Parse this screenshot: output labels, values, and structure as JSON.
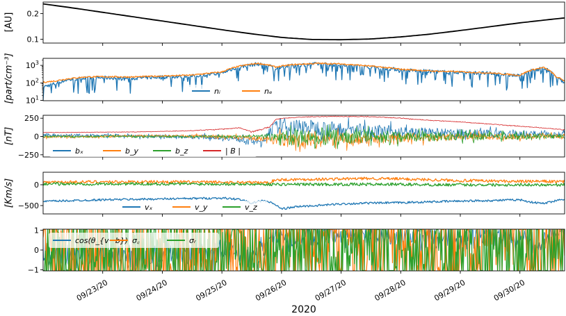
{
  "chart_data": [
    {
      "type": "line",
      "ylabel": "[AU]",
      "yscale": "linear",
      "ylim": [
        0.085,
        0.245
      ],
      "yticks": [
        0.1,
        0.2
      ],
      "ytick_labels": [
        "0.1",
        "0.2"
      ],
      "series": [
        {
          "color": "#000000",
          "x": [
            0,
            0.5,
            1,
            1.5,
            2,
            2.5,
            3,
            3.5,
            4,
            4.5,
            5,
            5.5,
            6,
            6.5,
            7,
            7.5,
            8,
            8.5,
            8.75
          ],
          "values": [
            0.238,
            0.222,
            0.205,
            0.188,
            0.171,
            0.154,
            0.137,
            0.121,
            0.107,
            0.099,
            0.098,
            0.101,
            0.109,
            0.12,
            0.134,
            0.149,
            0.164,
            0.177,
            0.183
          ]
        }
      ]
    },
    {
      "type": "line",
      "ylabel": "[part/cm⁻³]",
      "yscale": "log",
      "ylim": [
        10,
        2500
      ],
      "yticks": [
        10,
        100,
        1000
      ],
      "ytick_labels": [
        "10¹",
        "10²",
        "10³"
      ],
      "legend": "bottom-center",
      "series": [
        {
          "name": "nᵢ",
          "color": "#1f77b4",
          "x": [
            0,
            0.2,
            0.4,
            0.7,
            1.0,
            1.5,
            2.0,
            2.5,
            3.0,
            3.3,
            3.6,
            3.8,
            3.9,
            4.2,
            4.6,
            5.0,
            5.5,
            6.0,
            6.5,
            7.0,
            7.5,
            8.0,
            8.2,
            8.4,
            8.6,
            8.75
          ],
          "values": [
            60,
            90,
            150,
            190,
            200,
            180,
            220,
            240,
            350,
            800,
            1200,
            900,
            700,
            1000,
            1200,
            1100,
            800,
            550,
            450,
            400,
            350,
            250,
            500,
            700,
            200,
            100
          ]
        },
        {
          "name": "nₑ",
          "color": "#ff7f0e",
          "x": [
            0,
            0.2,
            0.4,
            0.7,
            1.0,
            1.5,
            2.0,
            2.5,
            3.0,
            3.3,
            3.6,
            3.8,
            3.9,
            4.2,
            4.6,
            5.0,
            5.5,
            6.0,
            6.5,
            7.0,
            7.5,
            8.0,
            8.2,
            8.4,
            8.6,
            8.75
          ],
          "values": [
            110,
            130,
            170,
            220,
            230,
            220,
            250,
            280,
            420,
            900,
            1300,
            1000,
            800,
            1100,
            1300,
            1200,
            900,
            600,
            480,
            430,
            370,
            270,
            550,
            750,
            230,
            130
          ]
        }
      ]
    },
    {
      "type": "line",
      "ylabel": "[nT]",
      "yscale": "linear",
      "ylim": [
        -280,
        290
      ],
      "yticks": [
        -250,
        0,
        250
      ],
      "ytick_labels": [
        "−250",
        "0",
        "250"
      ],
      "legend": "bottom-left",
      "series": [
        {
          "name": "bₓ",
          "color": "#1f77b4",
          "x": [
            0,
            1,
            2,
            3,
            3.5,
            3.7,
            3.8,
            4.0,
            4.5,
            5.0,
            5.5,
            6.0,
            6.5,
            7.0,
            7.5,
            8.0,
            8.5,
            8.75
          ],
          "values": [
            20,
            10,
            0,
            -10,
            -60,
            -80,
            100,
            150,
            120,
            100,
            80,
            60,
            50,
            40,
            40,
            30,
            40,
            30
          ],
          "spread": [
            40,
            40,
            40,
            60,
            80,
            80,
            120,
            200,
            200,
            180,
            160,
            140,
            120,
            110,
            100,
            90,
            80,
            70
          ]
        },
        {
          "name": "b_y",
          "color": "#ff7f0e",
          "x": [
            0,
            1,
            2,
            3,
            3.5,
            3.7,
            3.8,
            4.0,
            4.5,
            5.0,
            5.5,
            6.0,
            6.5,
            7.0,
            7.5,
            8.0,
            8.5,
            8.75
          ],
          "values": [
            -10,
            0,
            10,
            0,
            -20,
            -30,
            -30,
            -50,
            -50,
            -40,
            -30,
            -20,
            -20,
            -10,
            0,
            0,
            10,
            0
          ],
          "spread": [
            30,
            30,
            30,
            40,
            60,
            60,
            100,
            180,
            180,
            160,
            140,
            120,
            100,
            90,
            80,
            70,
            60,
            50
          ]
        },
        {
          "name": "b_z",
          "color": "#2ca02c",
          "x": [
            0,
            1,
            2,
            3,
            3.5,
            3.7,
            3.8,
            4.0,
            4.5,
            5.0,
            5.5,
            6.0,
            6.5,
            7.0,
            7.5,
            8.0,
            8.5,
            8.75
          ],
          "values": [
            0,
            0,
            0,
            0,
            0,
            0,
            0,
            -20,
            -10,
            -10,
            0,
            0,
            0,
            0,
            0,
            0,
            0,
            0
          ],
          "spread": [
            25,
            25,
            25,
            30,
            40,
            40,
            100,
            200,
            200,
            180,
            160,
            140,
            120,
            100,
            90,
            80,
            60,
            50
          ]
        },
        {
          "name": "| B |",
          "color": "#d62728",
          "x": [
            0,
            0.5,
            1,
            1.5,
            2,
            2.5,
            3,
            3.3,
            3.5,
            3.7,
            3.8,
            3.9,
            4.0,
            4.5,
            5.0,
            5.5,
            6.0,
            6.5,
            7.0,
            7.5,
            8.0,
            8.5,
            8.75
          ],
          "values": [
            55,
            55,
            60,
            62,
            70,
            80,
            100,
            120,
            60,
            110,
            130,
            230,
            250,
            270,
            275,
            270,
            250,
            220,
            200,
            170,
            140,
            110,
            90
          ],
          "spread": [
            5,
            5,
            5,
            5,
            5,
            8,
            10,
            10,
            15,
            15,
            15,
            10,
            10,
            8,
            8,
            8,
            8,
            8,
            8,
            8,
            8,
            8,
            8
          ]
        }
      ]
    },
    {
      "type": "line",
      "ylabel": "[Km/s]",
      "yscale": "linear",
      "ylim": [
        -700,
        300
      ],
      "yticks": [
        -500,
        0
      ],
      "ytick_labels": [
        "−500",
        "0"
      ],
      "legend": "bottom-center",
      "series": [
        {
          "name": "vₓ",
          "color": "#1f77b4",
          "x": [
            0,
            0.5,
            1,
            1.5,
            2,
            2.5,
            3,
            3.3,
            3.5,
            3.7,
            3.8,
            3.9,
            4.0,
            4.3,
            4.6,
            5.0,
            5.5,
            6.0,
            6.5,
            7.0,
            7.5,
            8.0,
            8.2,
            8.4,
            8.6,
            8.75
          ],
          "values": [
            -400,
            -380,
            -360,
            -350,
            -340,
            -330,
            -320,
            -350,
            -440,
            -380,
            -420,
            -480,
            -580,
            -520,
            -500,
            -460,
            -440,
            -430,
            -410,
            -390,
            -380,
            -360,
            -420,
            -450,
            -380,
            -340
          ]
        },
        {
          "name": "v_y",
          "color": "#ff7f0e",
          "x": [
            0,
            1,
            2,
            3,
            3.8,
            3.9,
            4.5,
            5.0,
            5.5,
            6.0,
            6.5,
            7.0,
            7.5,
            8.0,
            8.5,
            8.75
          ],
          "values": [
            60,
            70,
            70,
            60,
            50,
            120,
            130,
            140,
            150,
            140,
            120,
            100,
            90,
            80,
            80,
            70
          ]
        },
        {
          "name": "v_z",
          "color": "#2ca02c",
          "x": [
            0,
            1,
            2,
            3,
            3.8,
            3.9,
            4.5,
            5.0,
            5.5,
            6.0,
            6.5,
            7.0,
            7.5,
            8.0,
            8.5,
            8.75
          ],
          "values": [
            20,
            20,
            20,
            20,
            10,
            10,
            10,
            10,
            10,
            10,
            0,
            0,
            0,
            0,
            0,
            0
          ]
        }
      ]
    },
    {
      "type": "line",
      "yscale": "linear",
      "ylim": [
        -1.05,
        1.05
      ],
      "yticks": [
        -1,
        0,
        1
      ],
      "ytick_labels": [
        "−1",
        "0",
        "1"
      ],
      "legend": "top-left",
      "series": [
        {
          "name": "cos(θ_{v−b})",
          "color": "#1f77b4",
          "x": [
            0,
            0.5,
            1,
            1.5,
            2,
            2.5,
            3,
            3.5,
            3.8,
            3.9,
            4.2,
            4.6,
            5.0,
            5.5,
            6.0,
            6.5,
            7.0,
            7.5,
            8.0,
            8.3,
            8.5,
            8.75
          ],
          "values": [
            -0.2,
            -0.3,
            -0.3,
            -0.4,
            -0.3,
            -0.2,
            0.0,
            -0.4,
            0.3,
            0.8,
            0.6,
            0.7,
            0.8,
            0.7,
            0.6,
            0.6,
            0.5,
            0.6,
            0.6,
            0.2,
            0.8,
            0.9
          ],
          "spread": [
            1.0,
            1.0,
            1.0,
            1.0,
            1.0,
            1.0,
            1.0,
            1.0,
            0.9,
            0.8,
            0.9,
            0.9,
            0.8,
            0.9,
            0.9,
            0.9,
            0.9,
            0.9,
            0.9,
            0.9,
            0.6,
            0.3
          ]
        },
        {
          "name": "σ꜀",
          "color": "#ff7f0e",
          "x": [
            0,
            0.1,
            0.3,
            0.5,
            0.8,
            1.0,
            1.3,
            1.6,
            2.0,
            2.3,
            2.6,
            3.0,
            3.2,
            3.4,
            3.6,
            3.8,
            3.9,
            4.0,
            4.2,
            4.6,
            5.0,
            5.5,
            6.0,
            6.5,
            7.0,
            7.5,
            8.0,
            8.2,
            8.4,
            8.5,
            8.6,
            8.75
          ],
          "values": [
            -0.2,
            -0.35,
            -0.5,
            -0.55,
            -0.4,
            -0.6,
            -0.65,
            -0.7,
            -0.75,
            -0.75,
            -0.7,
            -0.55,
            -0.4,
            -0.1,
            -0.5,
            -0.3,
            0.4,
            0.7,
            0.8,
            0.75,
            0.9,
            0.8,
            0.7,
            0.7,
            0.8,
            0.8,
            0.85,
            0.4,
            -0.1,
            0.5,
            0.8,
            0.85
          ]
        },
        {
          "name": "σᵣ",
          "color": "#2ca02c",
          "x": [
            0,
            0.2,
            0.5,
            0.8,
            1.0,
            1.3,
            1.6,
            2.0,
            2.3,
            2.6,
            3.0,
            3.2,
            3.4,
            3.6,
            3.8,
            3.9,
            4.0,
            4.2,
            4.6,
            5.0,
            5.5,
            6.0,
            6.5,
            7.0,
            7.5,
            8.0,
            8.2,
            8.4,
            8.6,
            8.75
          ],
          "values": [
            -0.6,
            -0.5,
            -0.4,
            -0.4,
            -0.45,
            -0.5,
            -0.55,
            -0.55,
            -0.5,
            -0.45,
            -0.3,
            0.1,
            -0.6,
            -0.8,
            -0.85,
            -0.4,
            -0.3,
            -0.3,
            -0.35,
            -0.2,
            -0.25,
            -0.3,
            -0.25,
            -0.2,
            -0.25,
            -0.2,
            -0.3,
            -0.6,
            -0.3,
            -0.25
          ]
        }
      ]
    }
  ],
  "x_axis": {
    "xlabel": "2020",
    "xlim": [
      0,
      8.75
    ],
    "ticks": [
      {
        "at": 1,
        "label": "09/23/20"
      },
      {
        "at": 2,
        "label": "09/24/20"
      },
      {
        "at": 3,
        "label": "09/25/20"
      },
      {
        "at": 4,
        "label": "09/26/20"
      },
      {
        "at": 5,
        "label": "09/27/20"
      },
      {
        "at": 6,
        "label": "09/28/20"
      },
      {
        "at": 7,
        "label": "09/29/20"
      },
      {
        "at": 8,
        "label": "09/30/20"
      }
    ]
  }
}
